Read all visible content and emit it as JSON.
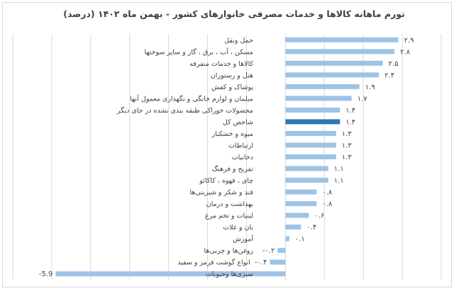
{
  "chart_data": {
    "type": "bar",
    "orientation": "horizontal",
    "title": "تورم ماهانه کالاها و خدمات مصرفی خانوارهای کشور - بهمن ماه ۱۴۰۲ (درصد)",
    "xlim": [
      -7,
      4
    ],
    "grid": true,
    "colors": {
      "bar": "#9dc3e6",
      "highlight": "#2e75b6"
    },
    "highlight_category": "شاخص کل",
    "categories": [
      "حمل ونقل",
      "مسکن ، آب ، برق ، گاز و سایر سوختها",
      "کالاها و خدمات متفرقه",
      "هتل و رستوران",
      "پوشاک و کفش",
      "مبلمان و لوازم خانگی و نگهداری معمول آنها",
      "محصولات خوراکی طبقه بندی نشده در جای دیگر",
      "شاخص کل",
      "میوه و خشکبار",
      "ارتباطات",
      "دخانیات",
      "تفریح و فرهنگ",
      "چای ، قهوه ، کاکائو",
      "قند و شکر و شیرینی‌ها",
      "بهداشت و درمان",
      "لبنیات و تخم مرغ",
      "نان و غلات",
      "آموزش",
      "روغن‌ها و چربی‌ها",
      "انواع گوشت قرمز و سفید",
      "سبزی‌ها وحبوبات"
    ],
    "values": [
      2.9,
      2.8,
      2.5,
      2.4,
      1.9,
      1.7,
      1.4,
      1.4,
      1.3,
      1.3,
      1.3,
      1.1,
      1.1,
      0.8,
      0.8,
      0.6,
      0.4,
      0.1,
      -0.2,
      -0.4,
      -5.9
    ],
    "data_labels": [
      "۲.۹",
      "۲.۸",
      "۲.۵",
      "۲.۴",
      "۱.۹",
      "۱.۷",
      "۱.۴",
      "۱.۴",
      "۱.۳",
      "۱.۳",
      "۱.۳",
      "۱.۱",
      "۱.۱",
      "۰.۸",
      "۰.۸",
      "۰.۶",
      "۰.۴",
      "۰.۱",
      "-۰.۲",
      "-۰.۴",
      "-5.9"
    ]
  }
}
